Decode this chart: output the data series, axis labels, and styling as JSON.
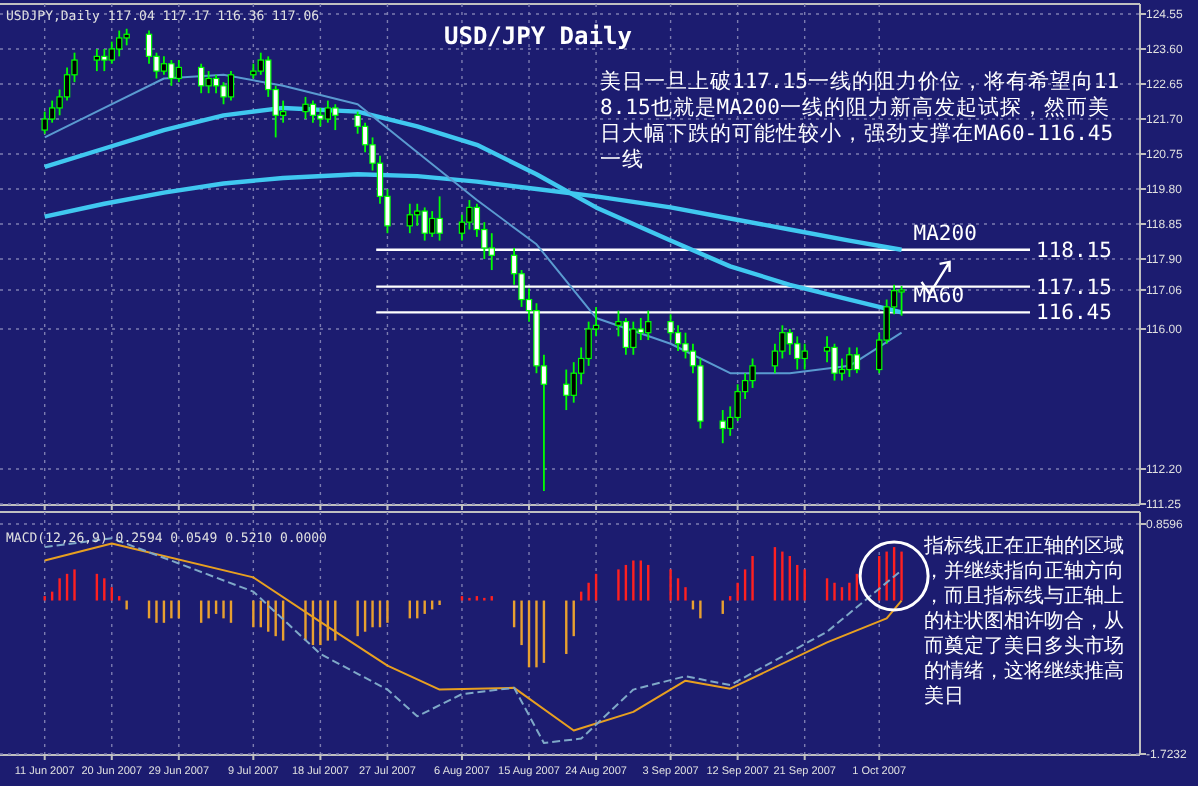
{
  "chart_data": [
    {
      "type": "candlestick",
      "title": "USD/JPY Daily",
      "subtitle": "USDJPY,Daily  117.04 117.17 116.36 117.06",
      "x": [
        "2007-06-11",
        "2007-06-12",
        "2007-06-13",
        "2007-06-14",
        "2007-06-15",
        "2007-06-18",
        "2007-06-19",
        "2007-06-20",
        "2007-06-21",
        "2007-06-22",
        "2007-06-25",
        "2007-06-26",
        "2007-06-27",
        "2007-06-28",
        "2007-06-29",
        "2007-07-02",
        "2007-07-03",
        "2007-07-04",
        "2007-07-05",
        "2007-07-06",
        "2007-07-09",
        "2007-07-10",
        "2007-07-11",
        "2007-07-12",
        "2007-07-13",
        "2007-07-16",
        "2007-07-17",
        "2007-07-18",
        "2007-07-19",
        "2007-07-20",
        "2007-07-23",
        "2007-07-24",
        "2007-07-25",
        "2007-07-26",
        "2007-07-27",
        "2007-07-30",
        "2007-07-31",
        "2007-08-01",
        "2007-08-02",
        "2007-08-03",
        "2007-08-06",
        "2007-08-07",
        "2007-08-08",
        "2007-08-09",
        "2007-08-10",
        "2007-08-13",
        "2007-08-14",
        "2007-08-15",
        "2007-08-16",
        "2007-08-17",
        "2007-08-20",
        "2007-08-21",
        "2007-08-22",
        "2007-08-23",
        "2007-08-24",
        "2007-08-27",
        "2007-08-28",
        "2007-08-29",
        "2007-08-30",
        "2007-08-31",
        "2007-09-03",
        "2007-09-04",
        "2007-09-05",
        "2007-09-06",
        "2007-09-07",
        "2007-09-10",
        "2007-09-11",
        "2007-09-12",
        "2007-09-13",
        "2007-09-14",
        "2007-09-17",
        "2007-09-18",
        "2007-09-19",
        "2007-09-20",
        "2007-09-21",
        "2007-09-24",
        "2007-09-25",
        "2007-09-26",
        "2007-09-27",
        "2007-09-28",
        "2007-10-01",
        "2007-10-02",
        "2007-10-03",
        "2007-10-04"
      ],
      "ohlc": [
        [
          121.4,
          121.9,
          121.3,
          121.7
        ],
        [
          121.7,
          122.2,
          121.6,
          122.0
        ],
        [
          122.0,
          122.5,
          121.8,
          122.3
        ],
        [
          122.3,
          123.1,
          122.2,
          122.9
        ],
        [
          122.9,
          123.5,
          122.7,
          123.3
        ],
        [
          123.3,
          123.6,
          123.0,
          123.4
        ],
        [
          123.4,
          123.6,
          123.0,
          123.3
        ],
        [
          123.3,
          123.8,
          123.2,
          123.6
        ],
        [
          123.6,
          124.1,
          123.4,
          123.9
        ],
        [
          123.9,
          124.15,
          123.7,
          124.0
        ],
        [
          124.0,
          124.1,
          123.2,
          123.4
        ],
        [
          123.4,
          123.5,
          122.8,
          123.0
        ],
        [
          123.0,
          123.4,
          122.9,
          123.2
        ],
        [
          123.2,
          123.3,
          122.6,
          122.8
        ],
        [
          122.8,
          123.3,
          122.7,
          123.1
        ],
        [
          123.1,
          123.2,
          122.4,
          122.6
        ],
        [
          122.6,
          123.0,
          122.4,
          122.8
        ],
        [
          122.8,
          122.9,
          122.4,
          122.6
        ],
        [
          122.6,
          122.7,
          122.1,
          122.3
        ],
        [
          122.3,
          123.0,
          122.2,
          122.9
        ],
        [
          122.9,
          123.2,
          122.8,
          123.0
        ],
        [
          123.0,
          123.5,
          122.9,
          123.3
        ],
        [
          123.3,
          123.4,
          122.3,
          122.5
        ],
        [
          122.5,
          122.6,
          121.2,
          121.8
        ],
        [
          121.8,
          122.2,
          121.6,
          121.9
        ],
        [
          121.9,
          122.3,
          121.7,
          122.1
        ],
        [
          122.1,
          122.2,
          121.6,
          121.8
        ],
        [
          121.8,
          122.0,
          121.5,
          121.7
        ],
        [
          121.7,
          122.2,
          121.6,
          122.0
        ],
        [
          122.0,
          122.1,
          121.4,
          121.8
        ],
        [
          121.8,
          121.9,
          121.3,
          121.5
        ],
        [
          121.5,
          121.6,
          120.8,
          121.0
        ],
        [
          121.0,
          121.2,
          120.3,
          120.5
        ],
        [
          120.5,
          120.7,
          119.4,
          119.6
        ],
        [
          119.6,
          119.8,
          118.6,
          118.8
        ],
        [
          118.8,
          119.4,
          118.6,
          119.1
        ],
        [
          119.1,
          119.4,
          118.8,
          119.2
        ],
        [
          119.2,
          119.3,
          118.4,
          118.6
        ],
        [
          118.6,
          119.2,
          118.5,
          119.0
        ],
        [
          119.0,
          119.6,
          118.4,
          118.6
        ],
        [
          118.6,
          119.1,
          118.4,
          118.9
        ],
        [
          118.9,
          119.5,
          118.7,
          119.3
        ],
        [
          119.3,
          119.4,
          118.5,
          118.7
        ],
        [
          118.7,
          118.9,
          117.9,
          118.2
        ],
        [
          118.2,
          118.6,
          117.6,
          118.0
        ],
        [
          118.0,
          118.2,
          117.2,
          117.5
        ],
        [
          117.5,
          117.6,
          116.6,
          116.8
        ],
        [
          116.8,
          117.1,
          116.2,
          116.5
        ],
        [
          116.5,
          116.7,
          114.8,
          115.0
        ],
        [
          115.0,
          115.3,
          111.6,
          114.5
        ],
        [
          114.5,
          114.9,
          113.8,
          114.2
        ],
        [
          114.2,
          115.1,
          114.0,
          114.8
        ],
        [
          114.8,
          115.5,
          114.5,
          115.2
        ],
        [
          115.2,
          116.2,
          115.0,
          116.0
        ],
        [
          116.0,
          116.6,
          115.8,
          116.1
        ],
        [
          116.1,
          116.5,
          115.8,
          116.2
        ],
        [
          116.2,
          116.3,
          115.3,
          115.5
        ],
        [
          115.5,
          116.2,
          115.3,
          116.0
        ],
        [
          116.0,
          116.3,
          115.7,
          115.9
        ],
        [
          115.9,
          116.5,
          115.7,
          116.2
        ],
        [
          116.2,
          116.4,
          115.7,
          115.9
        ],
        [
          115.9,
          116.1,
          115.4,
          115.6
        ],
        [
          115.6,
          115.9,
          115.2,
          115.4
        ],
        [
          115.4,
          115.6,
          114.8,
          115.0
        ],
        [
          115.0,
          115.2,
          113.3,
          113.5
        ],
        [
          113.5,
          113.8,
          112.9,
          113.3
        ],
        [
          113.3,
          113.9,
          113.1,
          113.6
        ],
        [
          113.6,
          114.5,
          113.5,
          114.3
        ],
        [
          114.3,
          114.8,
          114.1,
          114.6
        ],
        [
          114.6,
          115.2,
          114.4,
          115.0
        ],
        [
          115.0,
          115.6,
          114.8,
          115.4
        ],
        [
          115.4,
          116.1,
          115.2,
          115.9
        ],
        [
          115.9,
          116.0,
          115.3,
          115.6
        ],
        [
          115.6,
          115.8,
          114.9,
          115.2
        ],
        [
          115.2,
          115.6,
          114.9,
          115.4
        ],
        [
          115.4,
          115.8,
          115.1,
          115.5
        ],
        [
          115.5,
          115.6,
          114.6,
          114.8
        ],
        [
          114.8,
          115.2,
          114.6,
          114.9
        ],
        [
          114.9,
          115.5,
          114.7,
          115.3
        ],
        [
          115.3,
          115.5,
          114.8,
          114.9
        ],
        [
          114.9,
          115.9,
          114.8,
          115.7
        ],
        [
          115.7,
          116.8,
          115.6,
          116.6
        ],
        [
          116.6,
          117.2,
          116.4,
          117.04
        ],
        [
          117.04,
          117.17,
          116.36,
          117.06
        ]
      ],
      "color": "#00ff00",
      "series": [
        {
          "type": "line",
          "name": "MA200",
          "color": "#40c8f0",
          "x": [
            "2007-06-11",
            "2007-06-19",
            "2007-06-27",
            "2007-07-05",
            "2007-07-13",
            "2007-07-23",
            "2007-07-31",
            "2007-08-08",
            "2007-08-16",
            "2007-08-24",
            "2007-09-03",
            "2007-09-11",
            "2007-09-19",
            "2007-09-27",
            "2007-10-04"
          ],
          "values": [
            119.05,
            119.4,
            119.7,
            119.95,
            120.1,
            120.2,
            120.15,
            120.0,
            119.8,
            119.6,
            119.3,
            119.0,
            118.7,
            118.4,
            118.15
          ]
        },
        {
          "type": "line",
          "name": "MA60",
          "color": "#40c8f0",
          "x": [
            "2007-06-11",
            "2007-06-19",
            "2007-06-27",
            "2007-07-05",
            "2007-07-13",
            "2007-07-23",
            "2007-07-31",
            "2007-08-08",
            "2007-08-16",
            "2007-08-24",
            "2007-09-03",
            "2007-09-11",
            "2007-09-19",
            "2007-09-27",
            "2007-10-04"
          ],
          "values": [
            120.4,
            120.9,
            121.4,
            121.8,
            122.0,
            121.9,
            121.5,
            121.0,
            120.2,
            119.3,
            118.4,
            117.7,
            117.2,
            116.8,
            116.45
          ]
        },
        {
          "type": "line",
          "color": "#5a9ad0",
          "x": [
            "2007-06-11",
            "2007-06-19",
            "2007-06-27",
            "2007-07-05",
            "2007-07-13",
            "2007-07-23",
            "2007-07-31",
            "2007-08-08",
            "2007-08-16",
            "2007-08-24",
            "2007-09-03",
            "2007-09-11",
            "2007-09-19",
            "2007-09-27",
            "2007-10-04"
          ],
          "values": [
            121.2,
            122.0,
            122.8,
            122.9,
            122.6,
            122.1,
            120.8,
            119.5,
            118.3,
            116.3,
            115.6,
            114.8,
            114.8,
            115.0,
            115.9
          ]
        }
      ],
      "xlim": [
        "2007-06-05",
        "2007-11-05"
      ],
      "xticks": [
        {
          "value": "2007-06-11",
          "label": null
        },
        {
          "value": "2007-06-20",
          "label": null
        },
        {
          "value": "2007-06-29",
          "label": null
        },
        {
          "value": "2007-07-09",
          "label": null
        },
        {
          "value": "2007-07-18",
          "label": null
        },
        {
          "value": "2007-07-27",
          "label": null
        },
        {
          "value": "2007-08-06",
          "label": null
        },
        {
          "value": "2007-08-15",
          "label": null
        },
        {
          "value": "2007-08-24",
          "label": null
        },
        {
          "value": "2007-09-03",
          "label": null
        },
        {
          "value": "2007-09-12",
          "label": null
        },
        {
          "value": "2007-09-21",
          "label": null
        },
        {
          "value": "2007-10-01",
          "label": null
        }
      ],
      "ylim": [
        111.25,
        124.55
      ],
      "yticks": [
        {
          "value": 124.55,
          "label": "124.55"
        },
        {
          "value": 123.6,
          "label": "123.60"
        },
        {
          "value": 122.65,
          "label": "122.65"
        },
        {
          "value": 121.7,
          "label": "121.70"
        },
        {
          "value": 120.75,
          "label": "120.75"
        },
        {
          "value": 119.8,
          "label": "119.80"
        },
        {
          "value": 118.85,
          "label": "118.85"
        },
        {
          "value": 117.9,
          "label": "117.90"
        },
        {
          "value": 117.06,
          "label": "117.06"
        },
        {
          "value": 116.0,
          "label": "116.00"
        },
        {
          "value": 112.2,
          "label": "112.20"
        },
        {
          "value": 111.25,
          "label": "111.25"
        }
      ],
      "tick_labels": "y",
      "grid": true,
      "ref_lines": [
        {
          "axis": "y",
          "value": 118.15,
          "label": "118.15",
          "color": "#ffffff"
        },
        {
          "axis": "y",
          "value": 117.15,
          "label": "117.15",
          "color": "#ffffff"
        },
        {
          "axis": "y",
          "value": 116.45,
          "label": "116.45",
          "color": "#ffffff"
        }
      ],
      "annotations": [
        "美日一旦上破117.15一线的阻力价位，将有希望向118.15也就是MA200一线的阻力新高发起试探，然而美日大幅下跌的可能性较小，强劲支撑在MA60-116.45一线"
      ]
    },
    {
      "type": "bar",
      "title": "MACD(12,26,9) 0.2594 0.0549 0.5210 0.0000",
      "x": [
        "2007-06-11",
        "2007-06-12",
        "2007-06-13",
        "2007-06-14",
        "2007-06-15",
        "2007-06-18",
        "2007-06-19",
        "2007-06-20",
        "2007-06-21",
        "2007-06-22",
        "2007-06-25",
        "2007-06-26",
        "2007-06-27",
        "2007-06-28",
        "2007-06-29",
        "2007-07-02",
        "2007-07-03",
        "2007-07-04",
        "2007-07-05",
        "2007-07-06",
        "2007-07-09",
        "2007-07-10",
        "2007-07-11",
        "2007-07-12",
        "2007-07-13",
        "2007-07-16",
        "2007-07-17",
        "2007-07-18",
        "2007-07-19",
        "2007-07-20",
        "2007-07-23",
        "2007-07-24",
        "2007-07-25",
        "2007-07-26",
        "2007-07-27",
        "2007-07-30",
        "2007-07-31",
        "2007-08-01",
        "2007-08-02",
        "2007-08-03",
        "2007-08-06",
        "2007-08-07",
        "2007-08-08",
        "2007-08-09",
        "2007-08-10",
        "2007-08-13",
        "2007-08-14",
        "2007-08-15",
        "2007-08-16",
        "2007-08-17",
        "2007-08-20",
        "2007-08-21",
        "2007-08-22",
        "2007-08-23",
        "2007-08-24",
        "2007-08-27",
        "2007-08-28",
        "2007-08-29",
        "2007-08-30",
        "2007-08-31",
        "2007-09-03",
        "2007-09-04",
        "2007-09-05",
        "2007-09-06",
        "2007-09-07",
        "2007-09-10",
        "2007-09-11",
        "2007-09-12",
        "2007-09-13",
        "2007-09-14",
        "2007-09-17",
        "2007-09-18",
        "2007-09-19",
        "2007-09-20",
        "2007-09-21",
        "2007-09-24",
        "2007-09-25",
        "2007-09-26",
        "2007-09-27",
        "2007-09-28",
        "2007-10-01",
        "2007-10-02",
        "2007-10-03",
        "2007-10-04"
      ],
      "series": [
        {
          "values": [
            0.05,
            0.1,
            0.25,
            0.3,
            0.35,
            0.3,
            0.25,
            0.15,
            0.05,
            -0.1,
            -0.2,
            -0.25,
            -0.25,
            -0.2,
            -0.2,
            -0.25,
            -0.2,
            -0.15,
            -0.2,
            -0.25,
            -0.3,
            -0.3,
            -0.35,
            -0.4,
            -0.45,
            -0.45,
            -0.5,
            -0.5,
            -0.45,
            -0.45,
            -0.4,
            -0.35,
            -0.3,
            -0.3,
            -0.25,
            -0.2,
            -0.2,
            -0.15,
            -0.1,
            -0.05,
            0.05,
            0.03,
            0.05,
            0.03,
            0.05,
            -0.3,
            -0.5,
            -0.75,
            -0.75,
            -0.7,
            -0.6,
            -0.4,
            0.1,
            0.2,
            0.3,
            0.35,
            0.4,
            0.45,
            0.45,
            0.4,
            0.35,
            0.25,
            0.15,
            -0.1,
            -0.2,
            -0.15,
            0.05,
            0.2,
            0.35,
            0.5,
            0.6,
            0.55,
            0.5,
            0.4,
            0.35,
            0.25,
            0.2,
            0.15,
            0.2,
            0.3,
            0.5,
            0.55,
            0.6,
            0.55
          ],
          "colors": [
            "#ff2020",
            "#ff2020",
            "#ff2020",
            "#ff2020",
            "#ff2020",
            "#ff2020",
            "#ff2020",
            "#ff2020",
            "#ff2020",
            "#e8a030",
            "#e8a030",
            "#e8a030",
            "#e8a030",
            "#e8a030",
            "#e8a030",
            "#e8a030",
            "#e8a030",
            "#e8a030",
            "#e8a030",
            "#e8a030",
            "#e8a030",
            "#e8a030",
            "#e8a030",
            "#e8a030",
            "#e8a030",
            "#e8a030",
            "#e8a030",
            "#e8a030",
            "#e8a030",
            "#e8a030",
            "#e8a030",
            "#e8a030",
            "#e8a030",
            "#e8a030",
            "#e8a030",
            "#e8a030",
            "#e8a030",
            "#e8a030",
            "#e8a030",
            "#e8a030",
            "#ff2020",
            "#ff2020",
            "#ff2020",
            "#ff2020",
            "#ff2020",
            "#e8a030",
            "#e8a030",
            "#e8a030",
            "#e8a030",
            "#e8a030",
            "#e8a030",
            "#e8a030",
            "#ff2020",
            "#ff2020",
            "#ff2020",
            "#ff2020",
            "#ff2020",
            "#ff2020",
            "#ff2020",
            "#ff2020",
            "#ff2020",
            "#ff2020",
            "#ff2020",
            "#e8a030",
            "#e8a030",
            "#e8a030",
            "#ff2020",
            "#ff2020",
            "#ff2020",
            "#ff2020",
            "#ff2020",
            "#ff2020",
            "#ff2020",
            "#ff2020",
            "#ff2020",
            "#ff2020",
            "#ff2020",
            "#ff2020",
            "#ff2020",
            "#ff2020",
            "#ff2020",
            "#ff2020",
            "#ff2020",
            "#ff2020"
          ]
        },
        {
          "type": "line",
          "color": "#e8a020",
          "x": [
            "2007-06-11",
            "2007-06-20",
            "2007-07-09",
            "2007-07-18",
            "2007-07-27",
            "2007-08-03",
            "2007-08-13",
            "2007-08-21",
            "2007-08-29",
            "2007-09-05",
            "2007-09-11",
            "2007-09-24",
            "2007-10-02",
            "2007-10-04"
          ],
          "values": [
            0.45,
            0.64,
            0.26,
            -0.24,
            -0.73,
            -1.0,
            -0.98,
            -1.46,
            -1.25,
            -0.9,
            -0.99,
            -0.47,
            -0.2,
            0.0
          ]
        },
        {
          "type": "line",
          "color": "#7fa8c8",
          "line_style": "dashed",
          "x": [
            "2007-06-11",
            "2007-06-20",
            "2007-07-09",
            "2007-07-18",
            "2007-07-27",
            "2007-07-31",
            "2007-08-06",
            "2007-08-13",
            "2007-08-17",
            "2007-08-22",
            "2007-08-29",
            "2007-09-05",
            "2007-09-11",
            "2007-09-24",
            "2007-10-04"
          ],
          "values": [
            0.6,
            0.7,
            0.1,
            -0.6,
            -1.0,
            -1.3,
            -1.05,
            -0.98,
            -1.6,
            -1.55,
            -1.0,
            -0.85,
            -0.95,
            -0.35,
            0.34
          ]
        }
      ],
      "xlim": [
        "2007-06-05",
        "2007-11-05"
      ],
      "xticks": [
        {
          "value": "2007-06-11",
          "label": "11 Jun 2007"
        },
        {
          "value": "2007-06-20",
          "label": "20 Jun 2007"
        },
        {
          "value": "2007-06-29",
          "label": "29 Jun 2007"
        },
        {
          "value": "2007-07-09",
          "label": "9 Jul 2007"
        },
        {
          "value": "2007-07-18",
          "label": "18 Jul 2007"
        },
        {
          "value": "2007-07-27",
          "label": "27 Jul 2007"
        },
        {
          "value": "2007-08-06",
          "label": "6 Aug 2007"
        },
        {
          "value": "2007-08-15",
          "label": "15 Aug 2007"
        },
        {
          "value": "2007-08-24",
          "label": "24 Aug 2007"
        },
        {
          "value": "2007-09-03",
          "label": "3 Sep 2007"
        },
        {
          "value": "2007-09-12",
          "label": "12 Sep 2007"
        },
        {
          "value": "2007-09-21",
          "label": "21 Sep 2007"
        },
        {
          "value": "2007-10-01",
          "label": "1 Oct 2007"
        }
      ],
      "ylim": [
        -1.7232,
        0.8596
      ],
      "yticks": [
        0.8596,
        -1.7232
      ],
      "grid": true,
      "annotations": [
        "指标线正在正轴的区域，并继续指向正轴方向，而且指标线与正轴上的柱状图相许吻合，从而奠定了美日多头市场的情绪，这将继续推高美日"
      ]
    }
  ]
}
